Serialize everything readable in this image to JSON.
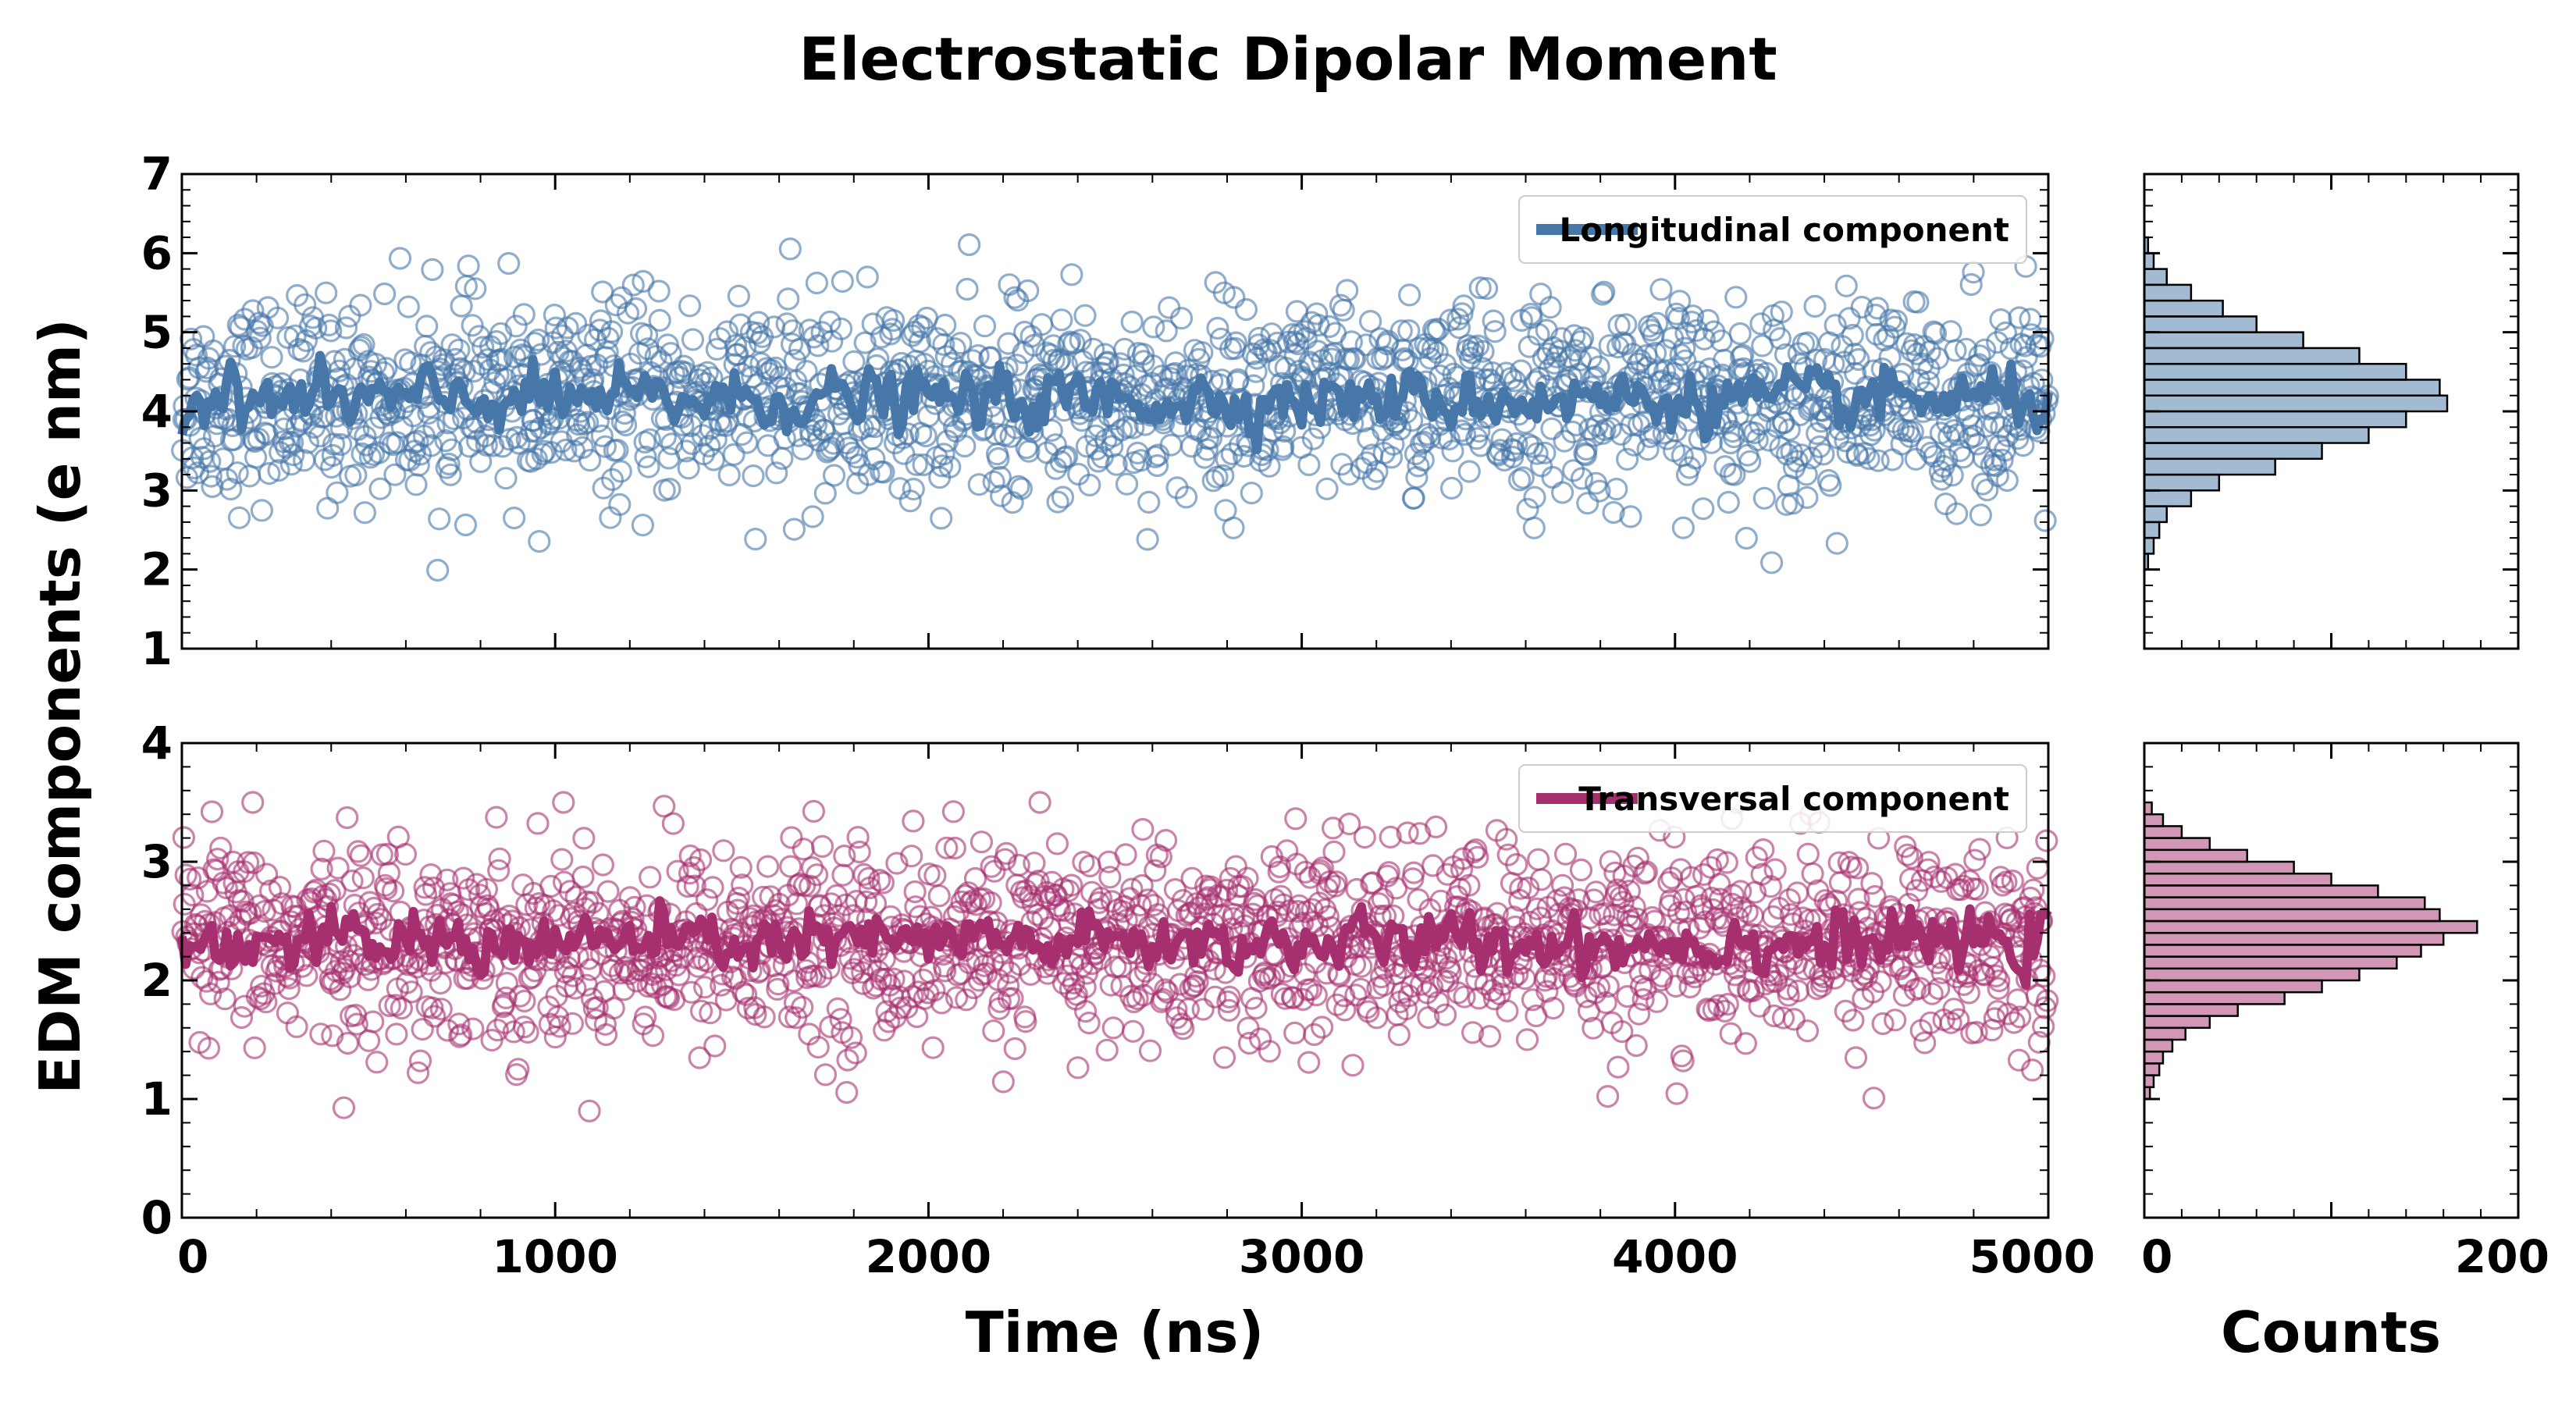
{
  "figure": {
    "title": "Electrostatic Dipolar Moment",
    "ylabel": "EDM components (e nm)",
    "xlabel_time": "Time (ns)",
    "xlabel_counts": "Counts"
  },
  "chart_data": [
    {
      "type": "scatter",
      "panel": "top-left",
      "series": [
        {
          "name": "Longitudinal component",
          "kind": "scatter+running-mean",
          "color": "#4677a8",
          "mean": 4.15,
          "sd_points": 0.62,
          "point_range": [
            1.9,
            6.2
          ]
        }
      ],
      "xlim": [
        0,
        5000
      ],
      "ylim": [
        1,
        7
      ],
      "yticks": [
        "1",
        "2",
        "3",
        "4",
        "5",
        "6",
        "7"
      ],
      "xticks": [
        "0",
        "1000",
        "2000",
        "3000",
        "4000",
        "5000"
      ],
      "legend": "top-right"
    },
    {
      "type": "scatter",
      "panel": "bottom-left",
      "series": [
        {
          "name": "Transversal component",
          "kind": "scatter+running-mean",
          "color": "#a6306f",
          "mean": 2.32,
          "sd_points": 0.42,
          "point_range": [
            0.8,
            3.5
          ]
        }
      ],
      "xlim": [
        0,
        5000
      ],
      "ylim": [
        0,
        4
      ],
      "yticks": [
        "0",
        "1",
        "2",
        "3",
        "4"
      ],
      "xticks": [
        "0",
        "1000",
        "2000",
        "3000",
        "4000",
        "5000"
      ],
      "legend": "top-right"
    },
    {
      "type": "bar",
      "panel": "top-right",
      "orientation": "horizontal",
      "color": "#4677a8",
      "bin_edges": [
        2.0,
        2.2,
        2.4,
        2.6,
        2.8,
        3.0,
        3.2,
        3.4,
        3.6,
        3.8,
        4.0,
        4.2,
        4.4,
        4.6,
        4.8,
        5.0,
        5.2,
        5.4,
        5.6,
        5.8,
        6.0,
        6.2
      ],
      "values": [
        2,
        5,
        8,
        12,
        25,
        40,
        70,
        95,
        120,
        140,
        162,
        158,
        140,
        115,
        85,
        60,
        42,
        25,
        12,
        5,
        2
      ],
      "xlim": [
        0,
        200
      ],
      "ylim": [
        1,
        7
      ]
    },
    {
      "type": "bar",
      "panel": "bottom-right",
      "orientation": "horizontal",
      "color": "#a6306f",
      "bin_edges": [
        1.0,
        1.1,
        1.2,
        1.3,
        1.4,
        1.5,
        1.6,
        1.7,
        1.8,
        1.9,
        2.0,
        2.1,
        2.2,
        2.3,
        2.4,
        2.5,
        2.6,
        2.7,
        2.8,
        2.9,
        3.0,
        3.1,
        3.2,
        3.3,
        3.4,
        3.5
      ],
      "values": [
        3,
        5,
        8,
        10,
        15,
        22,
        35,
        50,
        75,
        95,
        115,
        135,
        148,
        160,
        178,
        158,
        150,
        125,
        100,
        80,
        55,
        35,
        20,
        10,
        4
      ],
      "xlim": [
        0,
        200
      ],
      "ylim": [
        0,
        4
      ],
      "xticks": [
        "0",
        "200"
      ]
    }
  ]
}
